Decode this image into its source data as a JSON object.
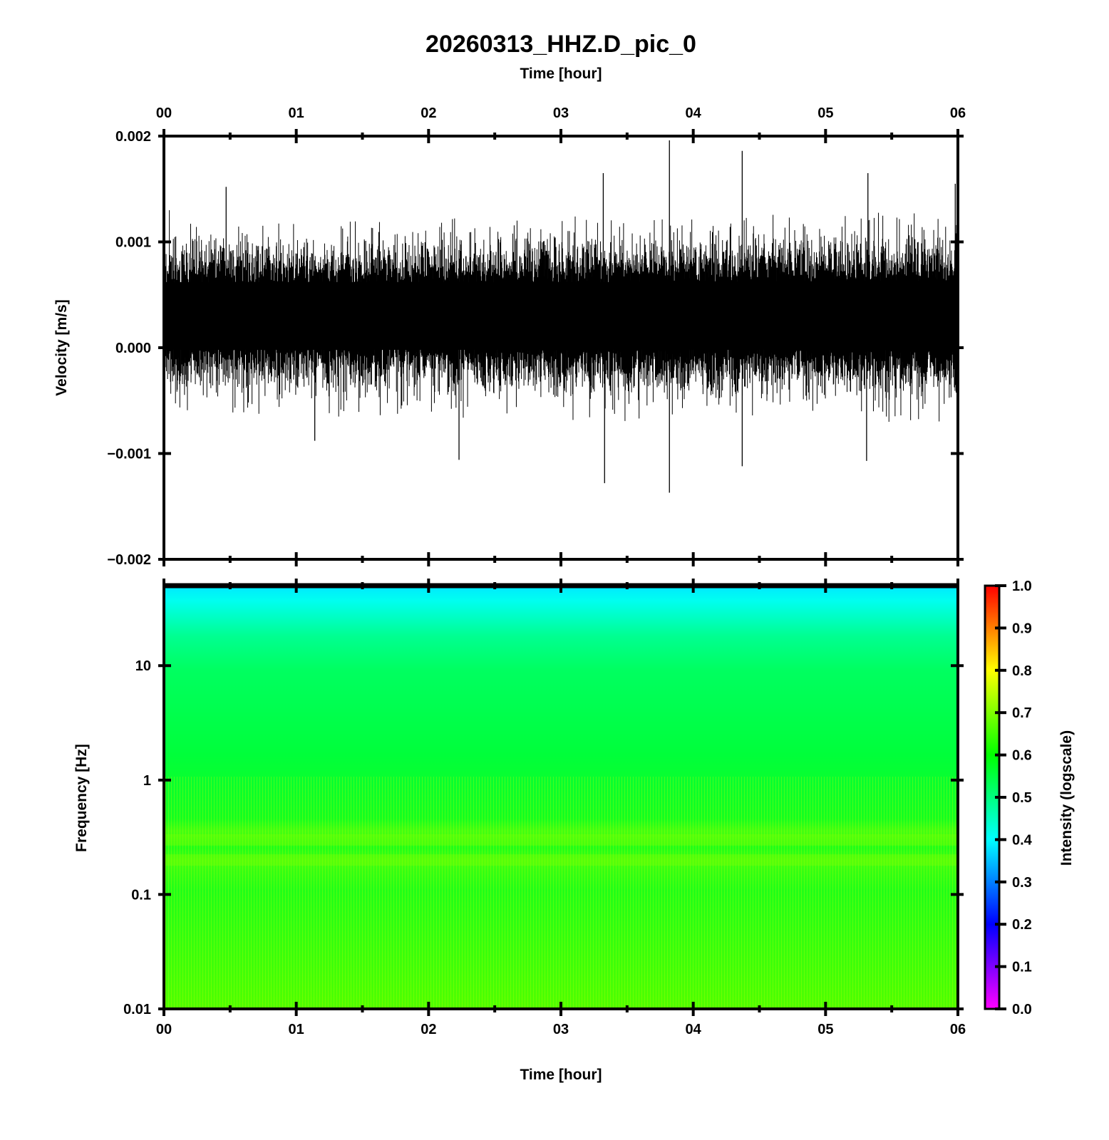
{
  "chart_data": [
    {
      "type": "line",
      "title": "20260313_HHZ.D_pic_0",
      "xlabel": "Time [hour]",
      "ylabel": "Velocity [m/s]",
      "xlim": [
        0,
        6
      ],
      "ylim": [
        -0.002,
        0.002
      ],
      "x_ticks": [
        "00",
        "01",
        "02",
        "03",
        "04",
        "05",
        "06"
      ],
      "y_ticks": [
        "0.002",
        "0.001",
        "0.000",
        "−0.001",
        "−0.002"
      ],
      "y_tick_values": [
        0.002,
        0.001,
        0.0,
        -0.001,
        -0.002
      ],
      "series": [
        {
          "color": "#000000",
          "baseline": 0.0003,
          "typical_range": [
            -0.0004,
            0.0011
          ],
          "peaks_max": [
            {
              "x": 0.47,
              "y": 0.00152
            },
            {
              "x": 3.32,
              "y": 0.00165
            },
            {
              "x": 3.82,
              "y": 0.00196
            },
            {
              "x": 4.37,
              "y": 0.00186
            },
            {
              "x": 5.32,
              "y": 0.00165
            },
            {
              "x": 5.98,
              "y": 0.00155
            }
          ],
          "peaks_min": [
            {
              "x": 1.14,
              "y": -0.00088
            },
            {
              "x": 2.23,
              "y": -0.00106
            },
            {
              "x": 3.33,
              "y": -0.00128
            },
            {
              "x": 3.82,
              "y": -0.00137
            },
            {
              "x": 4.37,
              "y": -0.00112
            },
            {
              "x": 5.31,
              "y": -0.00107
            }
          ]
        }
      ]
    },
    {
      "type": "heatmap",
      "xlabel": "Time [hour]",
      "ylabel": "Frequency [Hz]",
      "xlim": [
        0,
        6
      ],
      "ylim": [
        0.01,
        50
      ],
      "y_scale": "log",
      "x_ticks": [
        "00",
        "01",
        "02",
        "03",
        "04",
        "05",
        "06"
      ],
      "y_ticks": [
        "10",
        "1",
        "0.1",
        "0.01"
      ],
      "y_tick_values": [
        10,
        1,
        0.1,
        0.01
      ],
      "intensity_profile": [
        {
          "freq": 50,
          "intensity": 0.43
        },
        {
          "freq": 30,
          "intensity": 0.5
        },
        {
          "freq": 10,
          "intensity": 0.58
        },
        {
          "freq": 1,
          "intensity": 0.6
        },
        {
          "freq": 0.3,
          "intensity": 0.64
        },
        {
          "freq": 0.2,
          "intensity": 0.63
        },
        {
          "freq": 0.1,
          "intensity": 0.61
        },
        {
          "freq": 0.01,
          "intensity": 0.66
        }
      ],
      "colorbar": {
        "label": "Intensity (logscale)",
        "range": [
          0,
          1
        ],
        "ticks": [
          "1.0",
          "0.9",
          "0.8",
          "0.7",
          "0.6",
          "0.5",
          "0.4",
          "0.3",
          "0.2",
          "0.1",
          "0.0"
        ],
        "tick_values": [
          1.0,
          0.9,
          0.8,
          0.7,
          0.6,
          0.5,
          0.4,
          0.3,
          0.2,
          0.1,
          0.0
        ],
        "colors": [
          "#ff00ff",
          "#0000ff",
          "#00ffff",
          "#00ff00",
          "#ffff00",
          "#ff0000"
        ]
      }
    }
  ]
}
